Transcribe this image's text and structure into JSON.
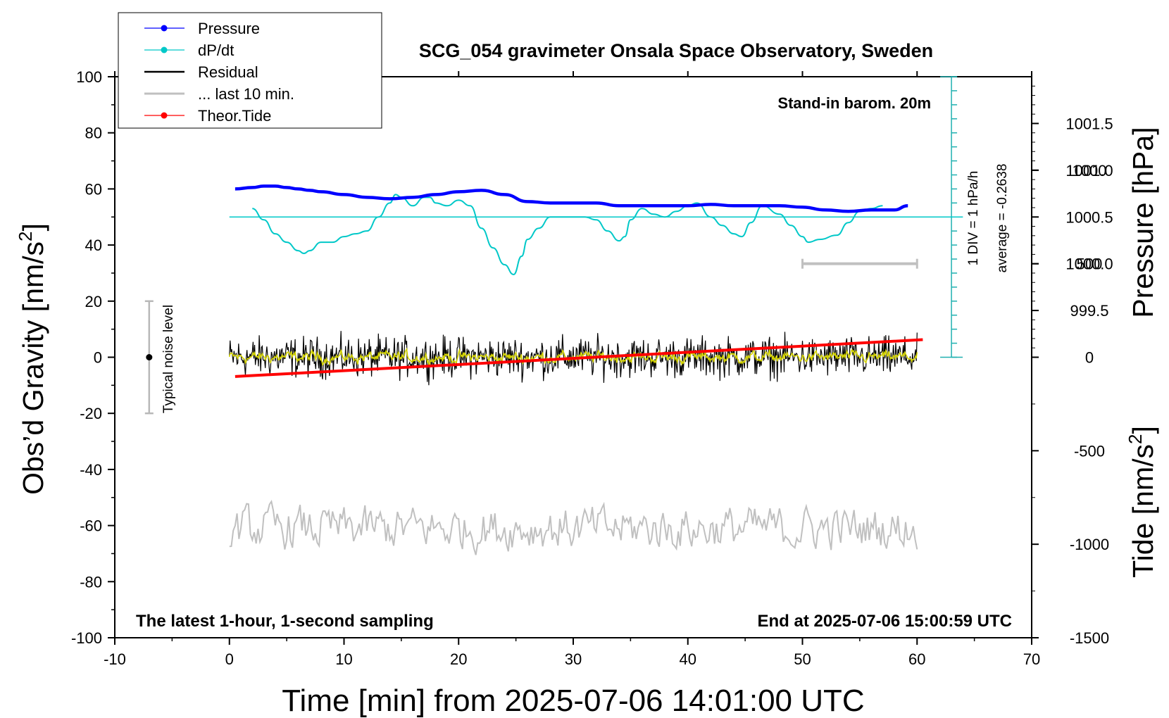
{
  "chart_data": {
    "type": "line",
    "title": "SCG_054 gravimeter Onsala Space Observatory, Sweden",
    "xlabel": "Time [min] from 2025-07-06 14:01:00 UTC",
    "ylabel_prefix": "Obs’d Gravity [nm/s",
    "ylabel_suffix": "]",
    "y2label": "Pressure [hPa]",
    "y3label_prefix": "Tide [nm/s",
    "y3label_suffix": "]",
    "superscript": "2",
    "xlim": [
      -10,
      70
    ],
    "ylim": [
      -100,
      100
    ],
    "xticks": [
      "-10",
      "0",
      "10",
      "20",
      "30",
      "40",
      "50",
      "60",
      "70"
    ],
    "yticks": [
      "100",
      "80",
      "60",
      "40",
      "20",
      "0",
      "-20",
      "-40",
      "-60",
      "-80",
      "-100"
    ],
    "pressure_ticks": [
      "1001.5",
      "1001.0",
      "1000.5",
      "1000.0",
      "999.5"
    ],
    "tide_ticks": [
      "1000",
      "500",
      "0",
      "-500",
      "-1000",
      "-1500"
    ],
    "annotations": {
      "barometer": "Stand-in barom. 20m",
      "div": "1 DIV = 1 hPa/h",
      "average": "average = -0.2638",
      "noise": "Typical noise level",
      "sampling": "The latest 1-hour, 1-second sampling",
      "end": "End at 2025-07-06 15:00:59 UTC"
    },
    "legend": [
      {
        "label": "Pressure",
        "color": "#0000ff",
        "marker": true
      },
      {
        "label": "dP/dt",
        "color": "#00c8c8",
        "marker": true
      },
      {
        "label": "Residual",
        "color": "#000000",
        "marker": false
      },
      {
        "label": "... last 10 min.",
        "color": "#c0c0c0",
        "marker": false
      },
      {
        "label": "Theor.Tide",
        "color": "#ff0000",
        "marker": true
      }
    ],
    "legend_position": "top-left",
    "colors": {
      "pressure": "#0000ff",
      "dpdt": "#00c8c8",
      "residual": "#000000",
      "residual_smooth": "#d4d400",
      "last10": "#c0c0c0",
      "tide": "#ff0000",
      "div_scale": "#20b0b0"
    },
    "series": [
      {
        "name": "Pressure",
        "x": [
          0.5,
          2,
          3,
          4,
          5,
          6,
          7,
          8,
          10,
          12,
          14,
          16,
          18,
          20,
          22,
          24,
          26,
          28,
          30,
          32,
          34,
          36,
          38,
          40,
          42,
          44,
          46,
          48,
          50,
          52,
          54,
          56,
          58,
          59.2
        ],
        "y": [
          60,
          60.5,
          61,
          61,
          60.5,
          60,
          59.5,
          59,
          58,
          57,
          56.5,
          57,
          58,
          59,
          59.5,
          58,
          55.5,
          55,
          55,
          55,
          54,
          54,
          54,
          54,
          54.5,
          54,
          54,
          54,
          53.5,
          52.5,
          52,
          52.5,
          52.5,
          54
        ]
      },
      {
        "name": "dP/dt",
        "x": [
          2,
          3,
          4,
          5,
          6,
          6.5,
          7,
          8,
          9,
          10,
          11,
          12,
          13,
          14,
          14.5,
          15,
          16,
          17,
          17.5,
          18,
          19,
          20,
          21,
          22,
          23,
          24,
          24.8,
          25.5,
          26,
          27,
          28,
          29,
          30,
          31,
          32,
          33,
          34,
          34.5,
          35,
          36,
          37,
          38,
          39,
          40,
          40.8,
          42,
          43,
          44,
          44.7,
          45.5,
          46.5,
          48,
          49,
          50,
          50.5,
          51.5,
          53,
          54,
          55,
          56,
          57
        ],
        "y": [
          53,
          49,
          44,
          41,
          38,
          37,
          38,
          41,
          41,
          43,
          44,
          45,
          50,
          55,
          58,
          57,
          54,
          57,
          57,
          55,
          54,
          56,
          54,
          46,
          39,
          33,
          29.5,
          36,
          42,
          46,
          50,
          50,
          50,
          50,
          49,
          45,
          41.5,
          43,
          49,
          53,
          51,
          50,
          52,
          54,
          55,
          50,
          47,
          44,
          43,
          48,
          54,
          51,
          47,
          43,
          41,
          42,
          43.5,
          48,
          52,
          53,
          54
        ]
      },
      {
        "name": "Residual",
        "x_range": [
          0,
          60
        ],
        "y_center": 0,
        "y_noise": 5
      },
      {
        "name": "... last 10 min.",
        "x_range": [
          0,
          60
        ],
        "y_center": -61,
        "y_noise": 5
      },
      {
        "name": "Theor.Tide",
        "x": [
          0.5,
          60.5
        ],
        "tide_values": [
          -103,
          94
        ]
      }
    ],
    "dpdt_zero_line_y": 50,
    "noise_bar": {
      "x": -7,
      "y_min": -20,
      "y_max": 20,
      "center": 0
    },
    "last10_bar": {
      "x_min": 50,
      "x_max": 60,
      "tide_value": 500
    },
    "pressure_range": [
      999.0,
      1002.0
    ],
    "tide_range": [
      -1500,
      1500
    ]
  }
}
